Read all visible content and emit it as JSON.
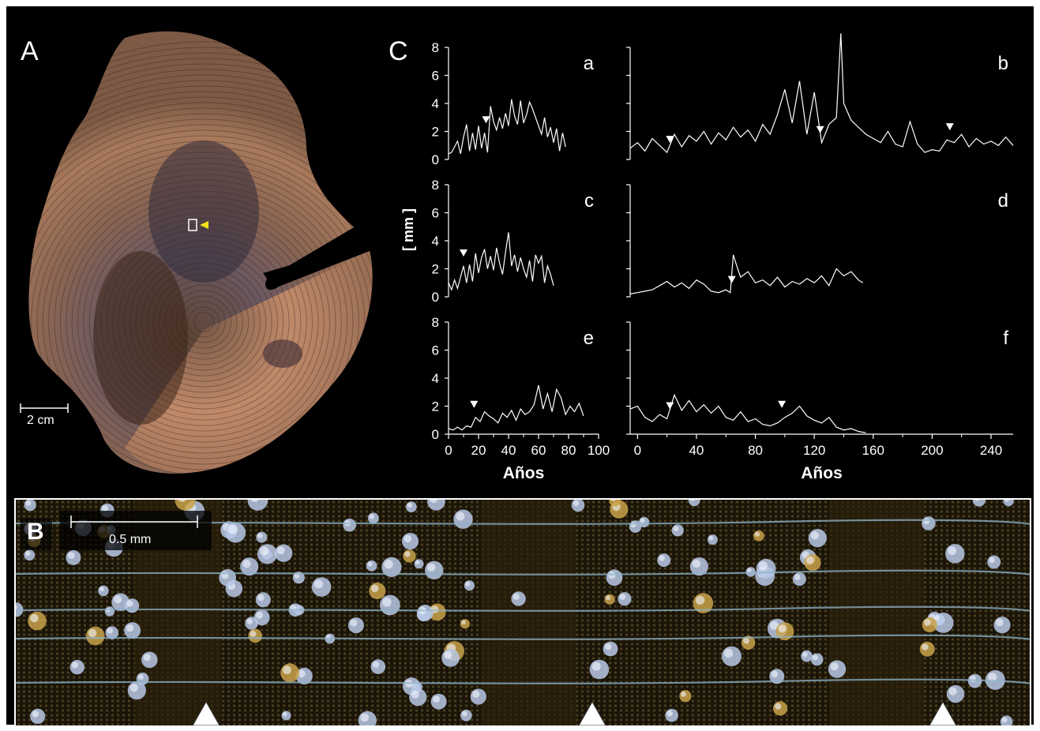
{
  "panel_a": {
    "letter": "A",
    "scale_label": "2 cm",
    "marker_color": "#f4e21a"
  },
  "panel_b": {
    "letter": "B",
    "scale_label": "0.5 mm",
    "ring_boundary_markers": 3
  },
  "panel_c": {
    "letter": "C",
    "ylabel": "[ mm ]",
    "xlabel_left": "Años",
    "xlabel_right": "Años"
  },
  "chart_data": [
    {
      "type": "line",
      "panel": "a",
      "label": "a",
      "xlim": [
        0,
        100
      ],
      "ylim": [
        0,
        8
      ],
      "yticks": [
        0,
        2,
        4,
        6,
        8
      ],
      "xticks": [
        0,
        20,
        40,
        60,
        80,
        100
      ],
      "x": [
        0,
        2,
        4,
        6,
        8,
        10,
        12,
        14,
        16,
        18,
        20,
        22,
        24,
        26,
        28,
        30,
        32,
        34,
        36,
        38,
        40,
        42,
        44,
        46,
        48,
        50,
        52,
        54,
        56,
        58,
        60,
        62,
        64,
        66,
        68,
        70,
        72,
        74,
        76,
        78
      ],
      "y": [
        0.4,
        0.5,
        0.9,
        1.3,
        0.4,
        1.6,
        2.5,
        0.6,
        1.9,
        0.7,
        2.4,
        0.8,
        1.9,
        0.5,
        3.8,
        2.7,
        2.1,
        3.0,
        2.2,
        3.3,
        2.4,
        4.3,
        3.1,
        2.5,
        4.2,
        2.6,
        3.2,
        4.1,
        3.6,
        3.0,
        2.4,
        1.8,
        3.0,
        1.6,
        2.3,
        1.2,
        2.2,
        0.6,
        1.9,
        0.9
      ],
      "markers_x": [
        25
      ]
    },
    {
      "type": "line",
      "panel": "b",
      "label": "b",
      "xlim": [
        -5,
        255
      ],
      "ylim": [
        0,
        8
      ],
      "yticks": [
        0,
        2,
        4,
        6,
        8
      ],
      "xticks": [
        0,
        40,
        80,
        120,
        160,
        200,
        240
      ],
      "x": [
        -5,
        0,
        5,
        10,
        15,
        20,
        25,
        30,
        35,
        40,
        45,
        50,
        55,
        60,
        65,
        70,
        75,
        80,
        85,
        90,
        95,
        100,
        105,
        110,
        115,
        120,
        125,
        130,
        135,
        138,
        140,
        145,
        150,
        155,
        160,
        165,
        170,
        175,
        180,
        185,
        190,
        195,
        200,
        205,
        210,
        215,
        220,
        225,
        230,
        235,
        240,
        245,
        250,
        255
      ],
      "y": [
        0.8,
        1.2,
        0.6,
        1.5,
        1.0,
        0.5,
        1.8,
        0.9,
        1.7,
        1.3,
        2.0,
        1.1,
        1.9,
        1.4,
        2.3,
        1.6,
        2.1,
        1.3,
        2.5,
        1.8,
        3.2,
        5.0,
        2.6,
        5.6,
        1.8,
        4.8,
        1.2,
        2.5,
        3.0,
        9.0,
        4.0,
        2.8,
        2.3,
        1.8,
        1.5,
        1.2,
        2.0,
        1.1,
        0.9,
        2.7,
        1.1,
        0.5,
        0.7,
        0.6,
        1.4,
        1.2,
        1.8,
        0.9,
        1.5,
        1.1,
        1.3,
        1.0,
        1.6,
        1.0
      ],
      "markers_x": [
        22,
        124,
        212
      ]
    },
    {
      "type": "line",
      "panel": "c",
      "label": "c",
      "xlim": [
        0,
        100
      ],
      "ylim": [
        0,
        8
      ],
      "yticks": [
        0,
        2,
        4,
        6,
        8
      ],
      "xticks": [
        0,
        20,
        40,
        60,
        80,
        100
      ],
      "x": [
        0,
        2,
        4,
        6,
        8,
        10,
        12,
        14,
        16,
        18,
        20,
        22,
        24,
        26,
        28,
        30,
        32,
        34,
        36,
        38,
        40,
        42,
        44,
        46,
        48,
        50,
        52,
        54,
        56,
        58,
        60,
        62,
        64,
        66,
        68,
        70
      ],
      "y": [
        1.0,
        0.5,
        1.2,
        0.6,
        1.4,
        2.2,
        1.0,
        2.3,
        1.1,
        3.1,
        1.7,
        2.8,
        3.4,
        2.0,
        2.9,
        1.9,
        3.5,
        2.4,
        1.6,
        3.2,
        4.6,
        2.2,
        3.0,
        1.8,
        2.8,
        2.0,
        1.4,
        2.6,
        1.1,
        3.0,
        2.4,
        2.9,
        1.0,
        2.2,
        1.6,
        0.8
      ],
      "markers_x": [
        10
      ]
    },
    {
      "type": "line",
      "panel": "d",
      "label": "d",
      "xlim": [
        -5,
        255
      ],
      "ylim": [
        0,
        8
      ],
      "yticks": [
        0,
        2,
        4,
        6,
        8
      ],
      "xticks": [
        0,
        40,
        80,
        120,
        160,
        200,
        240
      ],
      "x": [
        -5,
        0,
        5,
        10,
        15,
        20,
        25,
        30,
        35,
        40,
        45,
        50,
        55,
        60,
        63,
        65,
        68,
        70,
        75,
        80,
        85,
        90,
        95,
        100,
        105,
        110,
        115,
        120,
        125,
        130,
        135,
        140,
        145,
        150,
        153
      ],
      "y": [
        0.2,
        0.3,
        0.4,
        0.5,
        0.8,
        1.1,
        0.7,
        1.0,
        0.6,
        1.2,
        0.9,
        0.4,
        0.3,
        0.5,
        0.3,
        3.0,
        2.0,
        1.4,
        1.8,
        1.0,
        1.2,
        0.8,
        1.4,
        0.7,
        1.1,
        0.9,
        1.3,
        1.0,
        1.5,
        0.8,
        2.0,
        1.5,
        1.8,
        1.2,
        1.0
      ],
      "markers_x": [
        64
      ]
    },
    {
      "type": "line",
      "panel": "e",
      "label": "e",
      "xlim": [
        0,
        100
      ],
      "ylim": [
        0,
        8
      ],
      "yticks": [
        0,
        2,
        4,
        6,
        8
      ],
      "xticks": [
        0,
        20,
        40,
        60,
        80,
        100
      ],
      "x": [
        0,
        3,
        6,
        9,
        12,
        15,
        18,
        21,
        24,
        27,
        30,
        33,
        36,
        39,
        42,
        45,
        48,
        51,
        54,
        57,
        60,
        63,
        66,
        69,
        72,
        75,
        78,
        81,
        84,
        87,
        90
      ],
      "y": [
        0.4,
        0.3,
        0.5,
        0.3,
        0.6,
        0.5,
        1.2,
        0.9,
        1.6,
        1.3,
        1.1,
        0.8,
        1.5,
        1.2,
        1.7,
        1.0,
        1.8,
        1.4,
        1.6,
        2.1,
        3.5,
        1.8,
        2.9,
        1.6,
        3.2,
        2.6,
        1.4,
        2.0,
        1.6,
        2.2,
        1.3
      ],
      "markers_x": [
        17
      ]
    },
    {
      "type": "line",
      "panel": "f",
      "label": "f",
      "xlim": [
        -5,
        255
      ],
      "ylim": [
        0,
        8
      ],
      "yticks": [
        0,
        2,
        4,
        6,
        8
      ],
      "xticks": [
        0,
        40,
        80,
        120,
        160,
        200,
        240
      ],
      "x": [
        -5,
        0,
        5,
        10,
        15,
        20,
        25,
        30,
        35,
        40,
        45,
        50,
        55,
        60,
        65,
        70,
        75,
        80,
        85,
        90,
        95,
        100,
        105,
        110,
        115,
        120,
        125,
        130,
        135,
        140,
        145,
        150,
        155
      ],
      "y": [
        1.8,
        2.0,
        1.2,
        0.9,
        1.4,
        1.1,
        2.8,
        1.7,
        2.4,
        1.6,
        2.1,
        1.5,
        2.0,
        1.2,
        1.0,
        1.6,
        0.9,
        1.1,
        0.7,
        0.6,
        0.8,
        1.2,
        1.5,
        2.0,
        1.3,
        1.0,
        0.8,
        1.2,
        0.5,
        0.3,
        0.4,
        0.2,
        0.1
      ],
      "markers_x": [
        22,
        98
      ]
    }
  ]
}
